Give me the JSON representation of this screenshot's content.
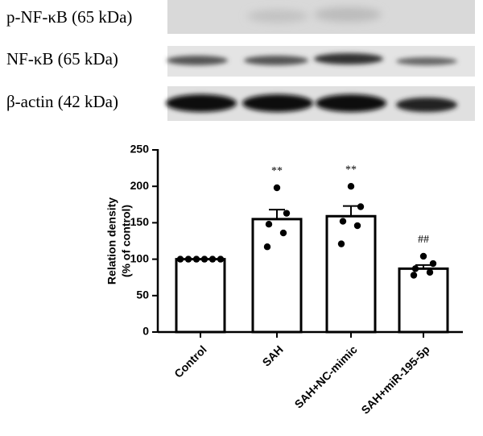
{
  "blots": [
    {
      "label": "p-NF-κB (65 kDa)"
    },
    {
      "label": "NF-κB (65 kDa)"
    },
    {
      "label": "β-actin (42 kDa)"
    }
  ],
  "chart_data": {
    "type": "bar",
    "ylabel": [
      "Relation density",
      "(% of control)"
    ],
    "categories": [
      "Control",
      "SAH",
      "SAH+NC-mimic",
      "SAH+miR-195-5p"
    ],
    "values": [
      100,
      155,
      159,
      87
    ],
    "errors": [
      0,
      13,
      14,
      5
    ],
    "points": [
      [
        100,
        100,
        100,
        100,
        100,
        100
      ],
      [
        198,
        163,
        148,
        136,
        117
      ],
      [
        200,
        172,
        152,
        146,
        121
      ],
      [
        104,
        94,
        87,
        82,
        78
      ]
    ],
    "annotations": [
      null,
      "**",
      "**",
      "##"
    ],
    "color": "#ffffff",
    "ylim": [
      0,
      250
    ],
    "yticks": [
      0,
      50,
      100,
      150,
      200,
      250
    ],
    "grid": false
  }
}
